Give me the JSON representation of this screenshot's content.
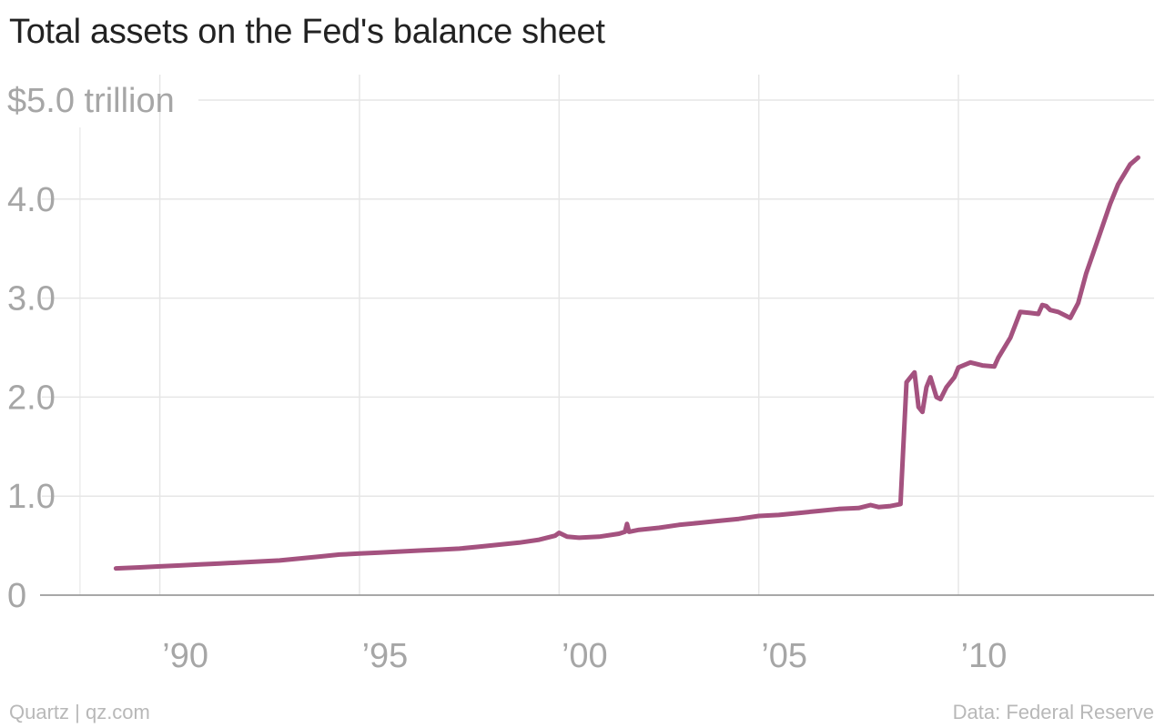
{
  "chart_data": {
    "type": "line",
    "title": "Total assets on the Fed's balance sheet",
    "xlabel": "",
    "ylabel": "",
    "x_range": [
      1987,
      2014.9
    ],
    "ylim": [
      0,
      5
    ],
    "y_ticks": [
      {
        "value": 0,
        "label": "0"
      },
      {
        "value": 1,
        "label": "1.0"
      },
      {
        "value": 2,
        "label": "2.0"
      },
      {
        "value": 3,
        "label": "3.0"
      },
      {
        "value": 4,
        "label": "4.0"
      },
      {
        "value": 5,
        "label": "$5.0 trillion"
      }
    ],
    "x_ticks": [
      {
        "value": 1990,
        "label": "’90"
      },
      {
        "value": 1995,
        "label": "’95"
      },
      {
        "value": 2000,
        "label": "’00"
      },
      {
        "value": 2005,
        "label": "’05"
      },
      {
        "value": 2010,
        "label": "’10"
      }
    ],
    "grid": true,
    "legend": "none",
    "series": [
      {
        "color": "#a4527f",
        "x": [
          1988.9,
          1989.5,
          1990.0,
          1990.5,
          1991.0,
          1991.5,
          1992.0,
          1992.5,
          1993.0,
          1993.5,
          1994.0,
          1994.5,
          1995.0,
          1995.5,
          1996.0,
          1996.5,
          1997.0,
          1997.5,
          1998.0,
          1998.5,
          1999.0,
          1999.5,
          1999.9,
          2000.0,
          2000.2,
          2000.5,
          2001.0,
          2001.5,
          2001.65,
          2001.7,
          2001.75,
          2002.0,
          2002.5,
          2003.0,
          2003.5,
          2004.0,
          2004.5,
          2005.0,
          2005.5,
          2006.0,
          2006.5,
          2007.0,
          2007.5,
          2007.8,
          2008.0,
          2008.3,
          2008.55,
          2008.62,
          2008.7,
          2008.8,
          2008.9,
          2009.0,
          2009.1,
          2009.2,
          2009.3,
          2009.45,
          2009.55,
          2009.7,
          2009.9,
          2010.0,
          2010.3,
          2010.6,
          2010.9,
          2011.0,
          2011.3,
          2011.55,
          2011.8,
          2012.0,
          2012.1,
          2012.2,
          2012.3,
          2012.5,
          2012.8,
          2013.0,
          2013.2,
          2013.5,
          2013.8,
          2014.0,
          2014.3,
          2014.5
        ],
        "y": [
          0.27,
          0.28,
          0.29,
          0.3,
          0.31,
          0.32,
          0.33,
          0.34,
          0.35,
          0.37,
          0.39,
          0.41,
          0.42,
          0.43,
          0.44,
          0.45,
          0.46,
          0.47,
          0.49,
          0.51,
          0.53,
          0.56,
          0.6,
          0.63,
          0.59,
          0.58,
          0.59,
          0.62,
          0.64,
          0.72,
          0.64,
          0.66,
          0.68,
          0.71,
          0.73,
          0.75,
          0.77,
          0.8,
          0.81,
          0.83,
          0.85,
          0.87,
          0.88,
          0.91,
          0.89,
          0.9,
          0.92,
          1.5,
          2.15,
          2.2,
          2.25,
          1.9,
          1.85,
          2.1,
          2.2,
          2.0,
          1.98,
          2.1,
          2.2,
          2.3,
          2.35,
          2.32,
          2.31,
          2.4,
          2.6,
          2.86,
          2.85,
          2.84,
          2.93,
          2.92,
          2.88,
          2.86,
          2.8,
          2.95,
          3.25,
          3.6,
          3.95,
          4.15,
          4.35,
          4.42
        ]
      }
    ]
  },
  "footer": {
    "source_left": "Quartz | qz.com",
    "source_right": "Data: Federal Reserve"
  }
}
